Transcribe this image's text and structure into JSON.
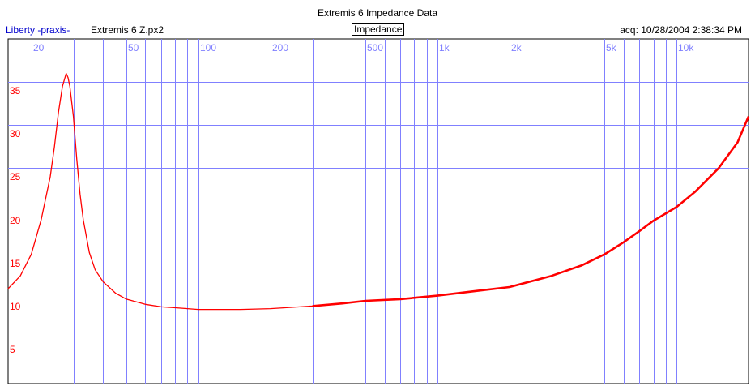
{
  "header": {
    "title": "Extremis 6 Impedance Data",
    "app_label": "Liberty -praxis-",
    "file_name": "Extremis 6 Z.px2",
    "mode_tag": "Impedance",
    "acquired": "acq: 10/28/2004 2:38:34 PM"
  },
  "colors": {
    "grid": "#8080ff",
    "frequency_labels": "#8080ff",
    "impedance_labels": "#ff0000",
    "trace": "#ff0000",
    "app_label": "#0000cc"
  },
  "chart_data": {
    "type": "line",
    "title": "Extremis 6 Impedance Data",
    "xscale": "log",
    "xlim": [
      16,
      20000
    ],
    "ylim": [
      0,
      40
    ],
    "grid": true,
    "x_gridlines": [
      20,
      30,
      40,
      50,
      60,
      70,
      80,
      90,
      100,
      200,
      300,
      400,
      500,
      600,
      700,
      800,
      900,
      1000,
      2000,
      3000,
      4000,
      5000,
      6000,
      7000,
      8000,
      9000,
      10000
    ],
    "y_gridlines": [
      5,
      10,
      15,
      20,
      25,
      30,
      35
    ],
    "x_tick_labels": [
      {
        "value": 20,
        "label": "20"
      },
      {
        "value": 50,
        "label": "50"
      },
      {
        "value": 100,
        "label": "100"
      },
      {
        "value": 200,
        "label": "200"
      },
      {
        "value": 500,
        "label": "500"
      },
      {
        "value": 1000,
        "label": "1k"
      },
      {
        "value": 2000,
        "label": "2k"
      },
      {
        "value": 5000,
        "label": "5k"
      },
      {
        "value": 10000,
        "label": "10k"
      }
    ],
    "y_tick_labels": [
      {
        "value": 35,
        "label": "35"
      },
      {
        "value": 30,
        "label": "30"
      },
      {
        "value": 25,
        "label": "25"
      },
      {
        "value": 20,
        "label": "20"
      },
      {
        "value": 15,
        "label": "15"
      },
      {
        "value": 10,
        "label": "10"
      },
      {
        "value": 5,
        "label": "5"
      }
    ],
    "series": [
      {
        "x": [
          16,
          18,
          20,
          22,
          24,
          25,
          26,
          27,
          28,
          28.5,
          29,
          30,
          31,
          32,
          33,
          35,
          37,
          40,
          45,
          50,
          60,
          70,
          80,
          100,
          120,
          150,
          200,
          300,
          400,
          500,
          700,
          1000,
          1500,
          2000,
          3000,
          4000,
          5000,
          6000,
          7000,
          8000,
          10000,
          12000,
          15000,
          18000,
          20000
        ],
        "y": [
          11,
          12.5,
          15,
          19,
          24,
          27.5,
          31.5,
          34.5,
          36,
          35.5,
          34.5,
          31,
          26,
          22,
          19,
          15.2,
          13.2,
          11.8,
          10.5,
          9.8,
          9.2,
          8.9,
          8.8,
          8.6,
          8.6,
          8.6,
          8.7,
          9.0,
          9.3,
          9.6,
          9.8,
          10.2,
          10.8,
          11.2,
          12.5,
          13.7,
          15.0,
          16.4,
          17.7,
          18.9,
          20.5,
          22.3,
          25.0,
          28.0,
          31.0
        ]
      }
    ]
  }
}
